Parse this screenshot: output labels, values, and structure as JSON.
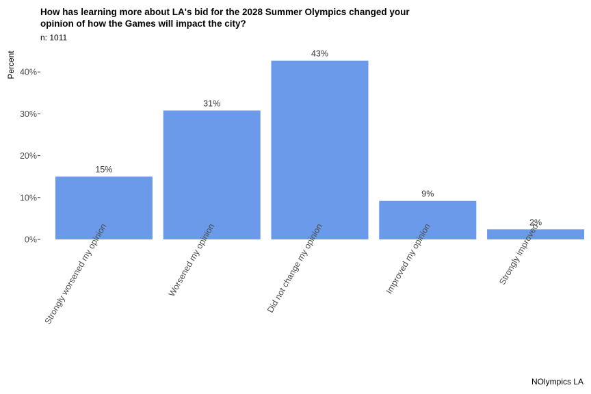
{
  "chart_data": {
    "type": "bar",
    "title": "How has learning more about LA's bid for the 2028 Summer Olympics changed your\n opinion of how the Games will impact the city?",
    "subtitle": "n: 1011",
    "ylabel": "Percent",
    "xlabel": "",
    "caption": "NOlympics LA",
    "categories": [
      "Strongly worsened my opinion",
      "Worsened my opinion",
      "Did not change my opinion",
      "Improved my opinion",
      "Strongly improved"
    ],
    "values": [
      15.0,
      30.8,
      42.7,
      9.2,
      2.4
    ],
    "data_labels": [
      "15%",
      "31%",
      "43%",
      "9%",
      "2%"
    ],
    "ylim": [
      0,
      45
    ],
    "yticks": [
      0,
      10,
      20,
      30,
      40
    ],
    "ytick_labels": [
      "0%",
      "10%",
      "20%",
      "30%",
      "40%"
    ],
    "bar_color": "#6a9ae9",
    "grid": false
  }
}
